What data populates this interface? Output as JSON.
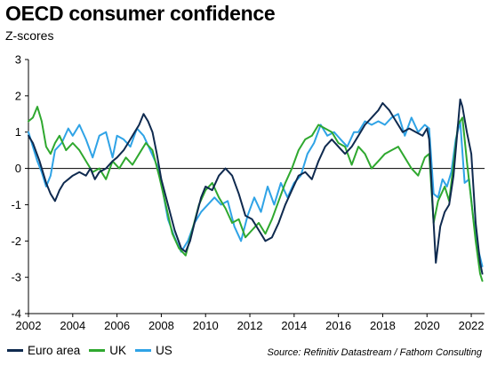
{
  "title": "OECD consumer confidence",
  "subtitle": "Z-scores",
  "source": "Source: Refinitiv Datastream / Fathom Consulting",
  "colors": {
    "euro_area": "#0f2a4f",
    "uk": "#2fa82f",
    "us": "#2fa3e6"
  },
  "chart_data": {
    "type": "line",
    "xlim": [
      2002,
      2022.6
    ],
    "ylim": [
      -4,
      3
    ],
    "xticks": [
      2002,
      2004,
      2006,
      2008,
      2010,
      2012,
      2014,
      2016,
      2018,
      2020,
      2022
    ],
    "yticks": [
      -4,
      -3,
      -2,
      -1,
      0,
      1,
      2,
      3
    ],
    "grid": false,
    "legend_position": "bottom-left",
    "series": [
      {
        "name": "Euro area",
        "color": "#0f2a4f",
        "points": [
          [
            2002.0,
            0.9
          ],
          [
            2002.2,
            0.7
          ],
          [
            2002.5,
            0.2
          ],
          [
            2002.8,
            -0.4
          ],
          [
            2003.0,
            -0.7
          ],
          [
            2003.2,
            -0.9
          ],
          [
            2003.4,
            -0.6
          ],
          [
            2003.6,
            -0.4
          ],
          [
            2003.8,
            -0.3
          ],
          [
            2004.0,
            -0.2
          ],
          [
            2004.3,
            -0.1
          ],
          [
            2004.6,
            -0.2
          ],
          [
            2004.8,
            0.0
          ],
          [
            2005.0,
            -0.3
          ],
          [
            2005.2,
            -0.1
          ],
          [
            2005.5,
            0.0
          ],
          [
            2005.8,
            0.2
          ],
          [
            2006.0,
            0.3
          ],
          [
            2006.3,
            0.5
          ],
          [
            2006.6,
            0.8
          ],
          [
            2006.8,
            1.0
          ],
          [
            2007.0,
            1.2
          ],
          [
            2007.2,
            1.5
          ],
          [
            2007.4,
            1.3
          ],
          [
            2007.6,
            1.0
          ],
          [
            2007.8,
            0.4
          ],
          [
            2008.0,
            -0.3
          ],
          [
            2008.3,
            -1.0
          ],
          [
            2008.6,
            -1.7
          ],
          [
            2008.9,
            -2.2
          ],
          [
            2009.1,
            -2.3
          ],
          [
            2009.3,
            -2.0
          ],
          [
            2009.5,
            -1.5
          ],
          [
            2009.8,
            -0.8
          ],
          [
            2010.0,
            -0.5
          ],
          [
            2010.3,
            -0.6
          ],
          [
            2010.6,
            -0.2
          ],
          [
            2010.9,
            0.0
          ],
          [
            2011.2,
            -0.2
          ],
          [
            2011.5,
            -0.7
          ],
          [
            2011.8,
            -1.3
          ],
          [
            2012.1,
            -1.4
          ],
          [
            2012.4,
            -1.7
          ],
          [
            2012.7,
            -2.0
          ],
          [
            2013.0,
            -1.9
          ],
          [
            2013.3,
            -1.5
          ],
          [
            2013.6,
            -1.0
          ],
          [
            2013.9,
            -0.6
          ],
          [
            2014.2,
            -0.2
          ],
          [
            2014.5,
            -0.1
          ],
          [
            2014.8,
            -0.3
          ],
          [
            2015.1,
            0.2
          ],
          [
            2015.4,
            0.6
          ],
          [
            2015.7,
            0.8
          ],
          [
            2016.0,
            0.6
          ],
          [
            2016.3,
            0.4
          ],
          [
            2016.6,
            0.6
          ],
          [
            2016.9,
            0.9
          ],
          [
            2017.2,
            1.2
          ],
          [
            2017.5,
            1.4
          ],
          [
            2017.8,
            1.6
          ],
          [
            2018.0,
            1.8
          ],
          [
            2018.3,
            1.6
          ],
          [
            2018.6,
            1.3
          ],
          [
            2018.9,
            1.0
          ],
          [
            2019.2,
            1.1
          ],
          [
            2019.5,
            1.0
          ],
          [
            2019.8,
            0.9
          ],
          [
            2020.0,
            1.1
          ],
          [
            2020.1,
            0.8
          ],
          [
            2020.3,
            -1.5
          ],
          [
            2020.4,
            -2.6
          ],
          [
            2020.6,
            -1.6
          ],
          [
            2020.8,
            -1.2
          ],
          [
            2021.0,
            -1.0
          ],
          [
            2021.2,
            -0.2
          ],
          [
            2021.4,
            1.2
          ],
          [
            2021.5,
            1.9
          ],
          [
            2021.6,
            1.7
          ],
          [
            2021.8,
            1.0
          ],
          [
            2022.0,
            0.4
          ],
          [
            2022.2,
            -1.5
          ],
          [
            2022.4,
            -2.6
          ],
          [
            2022.5,
            -2.9
          ]
        ]
      },
      {
        "name": "UK",
        "color": "#2fa82f",
        "points": [
          [
            2002.0,
            1.3
          ],
          [
            2002.2,
            1.4
          ],
          [
            2002.4,
            1.7
          ],
          [
            2002.6,
            1.3
          ],
          [
            2002.8,
            0.6
          ],
          [
            2003.0,
            0.4
          ],
          [
            2003.2,
            0.7
          ],
          [
            2003.4,
            0.9
          ],
          [
            2003.7,
            0.5
          ],
          [
            2004.0,
            0.7
          ],
          [
            2004.3,
            0.5
          ],
          [
            2004.6,
            0.2
          ],
          [
            2004.9,
            -0.1
          ],
          [
            2005.2,
            0.0
          ],
          [
            2005.5,
            -0.3
          ],
          [
            2005.8,
            0.2
          ],
          [
            2006.1,
            0.0
          ],
          [
            2006.4,
            0.3
          ],
          [
            2006.7,
            0.1
          ],
          [
            2007.0,
            0.4
          ],
          [
            2007.3,
            0.7
          ],
          [
            2007.6,
            0.5
          ],
          [
            2007.9,
            -0.2
          ],
          [
            2008.2,
            -1.0
          ],
          [
            2008.5,
            -1.8
          ],
          [
            2008.8,
            -2.2
          ],
          [
            2009.1,
            -2.4
          ],
          [
            2009.4,
            -1.7
          ],
          [
            2009.7,
            -1.0
          ],
          [
            2010.0,
            -0.6
          ],
          [
            2010.3,
            -0.4
          ],
          [
            2010.6,
            -0.8
          ],
          [
            2010.9,
            -1.1
          ],
          [
            2011.2,
            -1.5
          ],
          [
            2011.5,
            -1.4
          ],
          [
            2011.8,
            -1.9
          ],
          [
            2012.1,
            -1.7
          ],
          [
            2012.4,
            -1.5
          ],
          [
            2012.7,
            -1.8
          ],
          [
            2013.0,
            -1.4
          ],
          [
            2013.3,
            -0.9
          ],
          [
            2013.6,
            -0.4
          ],
          [
            2013.9,
            0.0
          ],
          [
            2014.2,
            0.5
          ],
          [
            2014.5,
            0.8
          ],
          [
            2014.8,
            0.9
          ],
          [
            2015.1,
            1.2
          ],
          [
            2015.4,
            1.1
          ],
          [
            2015.7,
            1.0
          ],
          [
            2016.0,
            0.7
          ],
          [
            2016.3,
            0.6
          ],
          [
            2016.6,
            0.1
          ],
          [
            2016.9,
            0.6
          ],
          [
            2017.2,
            0.4
          ],
          [
            2017.5,
            0.0
          ],
          [
            2017.8,
            0.2
          ],
          [
            2018.1,
            0.4
          ],
          [
            2018.4,
            0.5
          ],
          [
            2018.7,
            0.6
          ],
          [
            2019.0,
            0.3
          ],
          [
            2019.3,
            0.0
          ],
          [
            2019.6,
            -0.2
          ],
          [
            2019.9,
            0.3
          ],
          [
            2020.1,
            0.4
          ],
          [
            2020.3,
            -1.5
          ],
          [
            2020.5,
            -0.9
          ],
          [
            2020.8,
            -0.5
          ],
          [
            2021.0,
            -0.9
          ],
          [
            2021.2,
            0.1
          ],
          [
            2021.4,
            1.2
          ],
          [
            2021.6,
            1.4
          ],
          [
            2021.8,
            0.2
          ],
          [
            2022.0,
            -0.9
          ],
          [
            2022.2,
            -2.0
          ],
          [
            2022.4,
            -2.9
          ],
          [
            2022.5,
            -3.1
          ]
        ]
      },
      {
        "name": "US",
        "color": "#2fa3e6",
        "points": [
          [
            2002.0,
            1.0
          ],
          [
            2002.2,
            0.6
          ],
          [
            2002.4,
            0.2
          ],
          [
            2002.6,
            -0.1
          ],
          [
            2002.8,
            -0.5
          ],
          [
            2003.0,
            -0.2
          ],
          [
            2003.2,
            0.5
          ],
          [
            2003.5,
            0.7
          ],
          [
            2003.8,
            1.1
          ],
          [
            2004.0,
            0.9
          ],
          [
            2004.3,
            1.2
          ],
          [
            2004.6,
            0.8
          ],
          [
            2004.9,
            0.3
          ],
          [
            2005.2,
            0.9
          ],
          [
            2005.5,
            1.0
          ],
          [
            2005.8,
            0.3
          ],
          [
            2006.0,
            0.9
          ],
          [
            2006.3,
            0.8
          ],
          [
            2006.6,
            0.6
          ],
          [
            2006.9,
            1.1
          ],
          [
            2007.2,
            0.9
          ],
          [
            2007.5,
            0.5
          ],
          [
            2007.8,
            0.1
          ],
          [
            2008.0,
            -0.4
          ],
          [
            2008.3,
            -1.4
          ],
          [
            2008.6,
            -1.9
          ],
          [
            2008.9,
            -2.3
          ],
          [
            2009.2,
            -2.0
          ],
          [
            2009.5,
            -1.5
          ],
          [
            2009.8,
            -1.2
          ],
          [
            2010.1,
            -1.0
          ],
          [
            2010.4,
            -0.8
          ],
          [
            2010.7,
            -1.0
          ],
          [
            2011.0,
            -0.9
          ],
          [
            2011.3,
            -1.6
          ],
          [
            2011.6,
            -2.0
          ],
          [
            2011.9,
            -1.3
          ],
          [
            2012.2,
            -0.8
          ],
          [
            2012.5,
            -1.2
          ],
          [
            2012.8,
            -0.5
          ],
          [
            2013.1,
            -1.0
          ],
          [
            2013.4,
            -0.4
          ],
          [
            2013.7,
            -0.8
          ],
          [
            2014.0,
            -0.4
          ],
          [
            2014.3,
            -0.2
          ],
          [
            2014.6,
            0.4
          ],
          [
            2014.9,
            0.7
          ],
          [
            2015.2,
            1.2
          ],
          [
            2015.5,
            0.9
          ],
          [
            2015.8,
            1.0
          ],
          [
            2016.1,
            0.8
          ],
          [
            2016.4,
            0.6
          ],
          [
            2016.7,
            1.0
          ],
          [
            2016.9,
            1.0
          ],
          [
            2017.2,
            1.3
          ],
          [
            2017.5,
            1.2
          ],
          [
            2017.8,
            1.3
          ],
          [
            2018.1,
            1.2
          ],
          [
            2018.4,
            1.4
          ],
          [
            2018.7,
            1.5
          ],
          [
            2019.0,
            0.9
          ],
          [
            2019.3,
            1.4
          ],
          [
            2019.6,
            1.0
          ],
          [
            2019.9,
            1.2
          ],
          [
            2020.1,
            1.1
          ],
          [
            2020.3,
            -0.7
          ],
          [
            2020.5,
            -0.8
          ],
          [
            2020.7,
            -0.3
          ],
          [
            2020.9,
            -0.5
          ],
          [
            2021.1,
            -0.1
          ],
          [
            2021.3,
            0.8
          ],
          [
            2021.5,
            1.3
          ],
          [
            2021.7,
            -0.4
          ],
          [
            2021.9,
            -0.3
          ],
          [
            2022.1,
            -1.4
          ],
          [
            2022.3,
            -2.2
          ],
          [
            2022.5,
            -2.7
          ]
        ]
      }
    ]
  }
}
